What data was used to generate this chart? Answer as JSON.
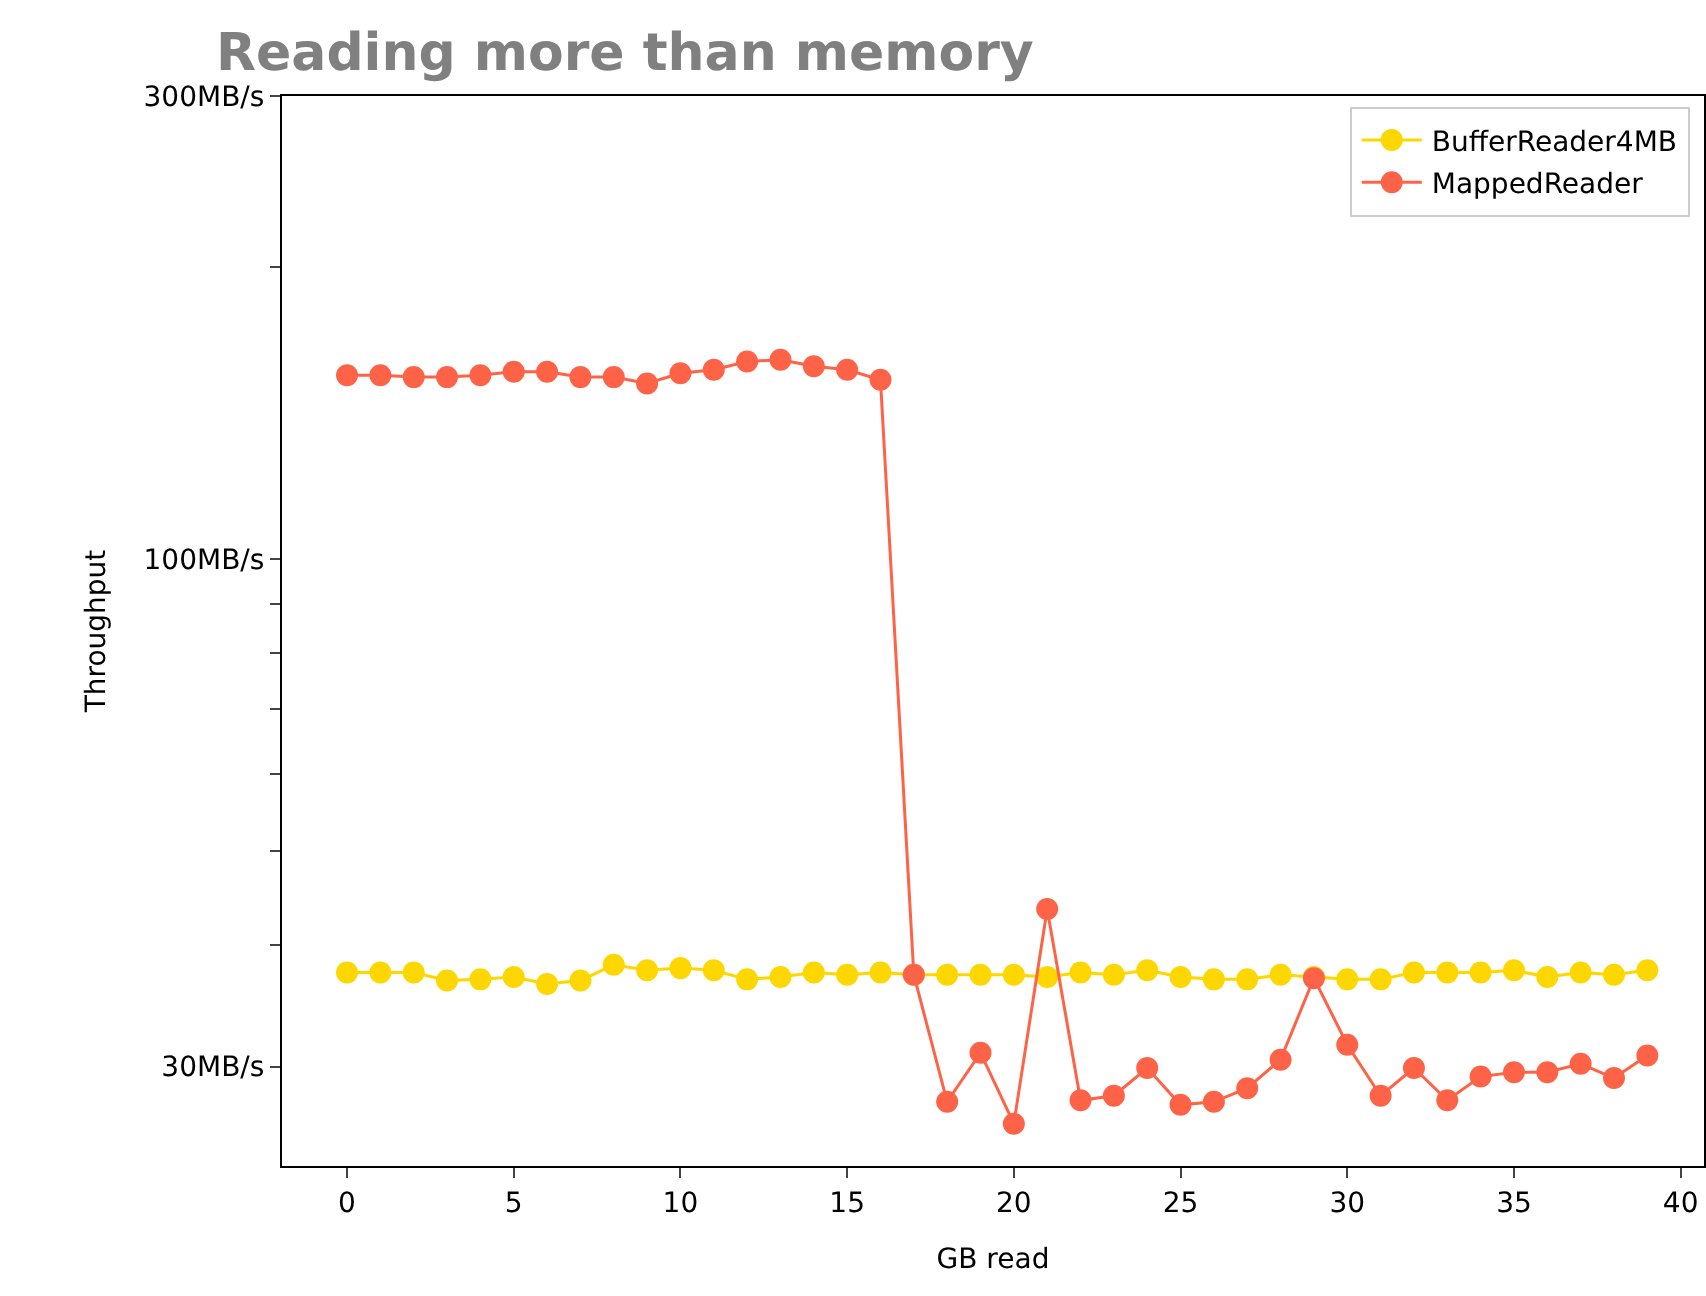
{
  "chart_data": {
    "type": "line",
    "title": "Reading more than memory",
    "xlabel": "GB read",
    "ylabel": "Throughput",
    "x": [
      0,
      1,
      2,
      3,
      4,
      5,
      6,
      7,
      8,
      9,
      10,
      11,
      12,
      13,
      14,
      15,
      16,
      17,
      18,
      19,
      20,
      21,
      22,
      23,
      24,
      25,
      26,
      27,
      28,
      29,
      30,
      31,
      32,
      33,
      34,
      35,
      36,
      37,
      38,
      39
    ],
    "series": [
      {
        "name": "BufferReader4MB",
        "color": "#ffd700",
        "values": [
          37.5,
          37.5,
          37.5,
          36.8,
          36.9,
          37.1,
          36.5,
          36.8,
          38.2,
          37.7,
          37.9,
          37.7,
          36.9,
          37.1,
          37.5,
          37.3,
          37.5,
          37.3,
          37.3,
          37.3,
          37.3,
          37.1,
          37.5,
          37.3,
          37.7,
          37.1,
          36.9,
          36.9,
          37.3,
          37.1,
          36.9,
          36.9,
          37.5,
          37.5,
          37.5,
          37.7,
          37.1,
          37.5,
          37.3,
          37.7
        ]
      },
      {
        "name": "MappedReader",
        "color": "#ff6347",
        "values": [
          154.7,
          154.7,
          154,
          154,
          154.7,
          156,
          156,
          154,
          154,
          151.7,
          155.4,
          156.7,
          159.8,
          160.5,
          158,
          156.7,
          153,
          37.3,
          27.6,
          31.0,
          26.2,
          43.6,
          27.7,
          28.0,
          29.9,
          27.4,
          27.6,
          28.5,
          30.5,
          37.0,
          31.6,
          28.0,
          29.9,
          27.7,
          29.3,
          29.6,
          29.6,
          30.2,
          29.2,
          30.8
        ]
      }
    ],
    "log": "y",
    "xlim": [
      -1.95,
      40.7
    ],
    "ylim": [
      23.7,
      300
    ],
    "xticks": [
      0,
      5,
      10,
      15,
      20,
      25,
      30,
      35,
      40
    ],
    "yticks": [
      {
        "value": 30,
        "label": "30MB/s"
      },
      {
        "value": 40,
        "label": null
      },
      {
        "value": 50,
        "label": null
      },
      {
        "value": 60,
        "label": null
      },
      {
        "value": 70,
        "label": null
      },
      {
        "value": 80,
        "label": null
      },
      {
        "value": 90,
        "label": null
      },
      {
        "value": 100,
        "label": "100MB/s"
      },
      {
        "value": 200,
        "label": null
      },
      {
        "value": 300,
        "label": "300MB/s"
      }
    ],
    "legend": "top right",
    "marker": "circle",
    "line_style": "solid"
  }
}
